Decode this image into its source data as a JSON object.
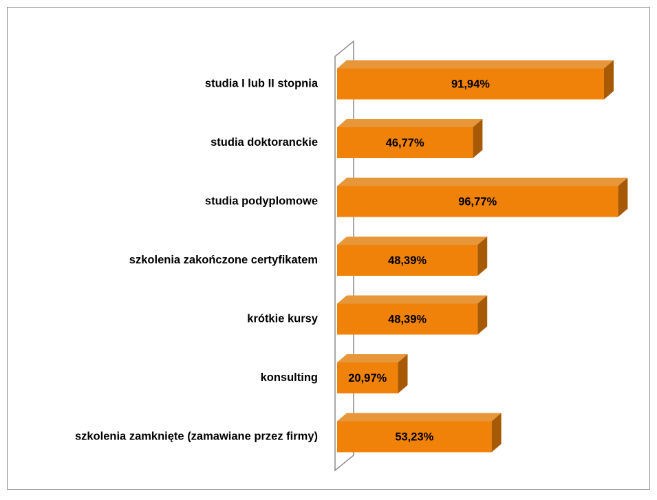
{
  "chart_data": {
    "type": "bar3d_horizontal",
    "categories": [
      "studia I lub II stopnia",
      "studia doktoranckie",
      "studia podyplomowe",
      "szkolenia zakończone certyfikatem",
      "krótkie kursy",
      "konsulting",
      "szkolenia zamknięte (zamawiane przez firmy)"
    ],
    "values": [
      91.94,
      46.77,
      96.77,
      48.39,
      48.39,
      20.97,
      53.23
    ],
    "value_labels": [
      "91,94%",
      "46,77%",
      "96,77%",
      "48,39%",
      "48,39%",
      "20,97%",
      "53,23%"
    ],
    "color": "#f08209",
    "xlim": [
      0,
      100
    ]
  }
}
